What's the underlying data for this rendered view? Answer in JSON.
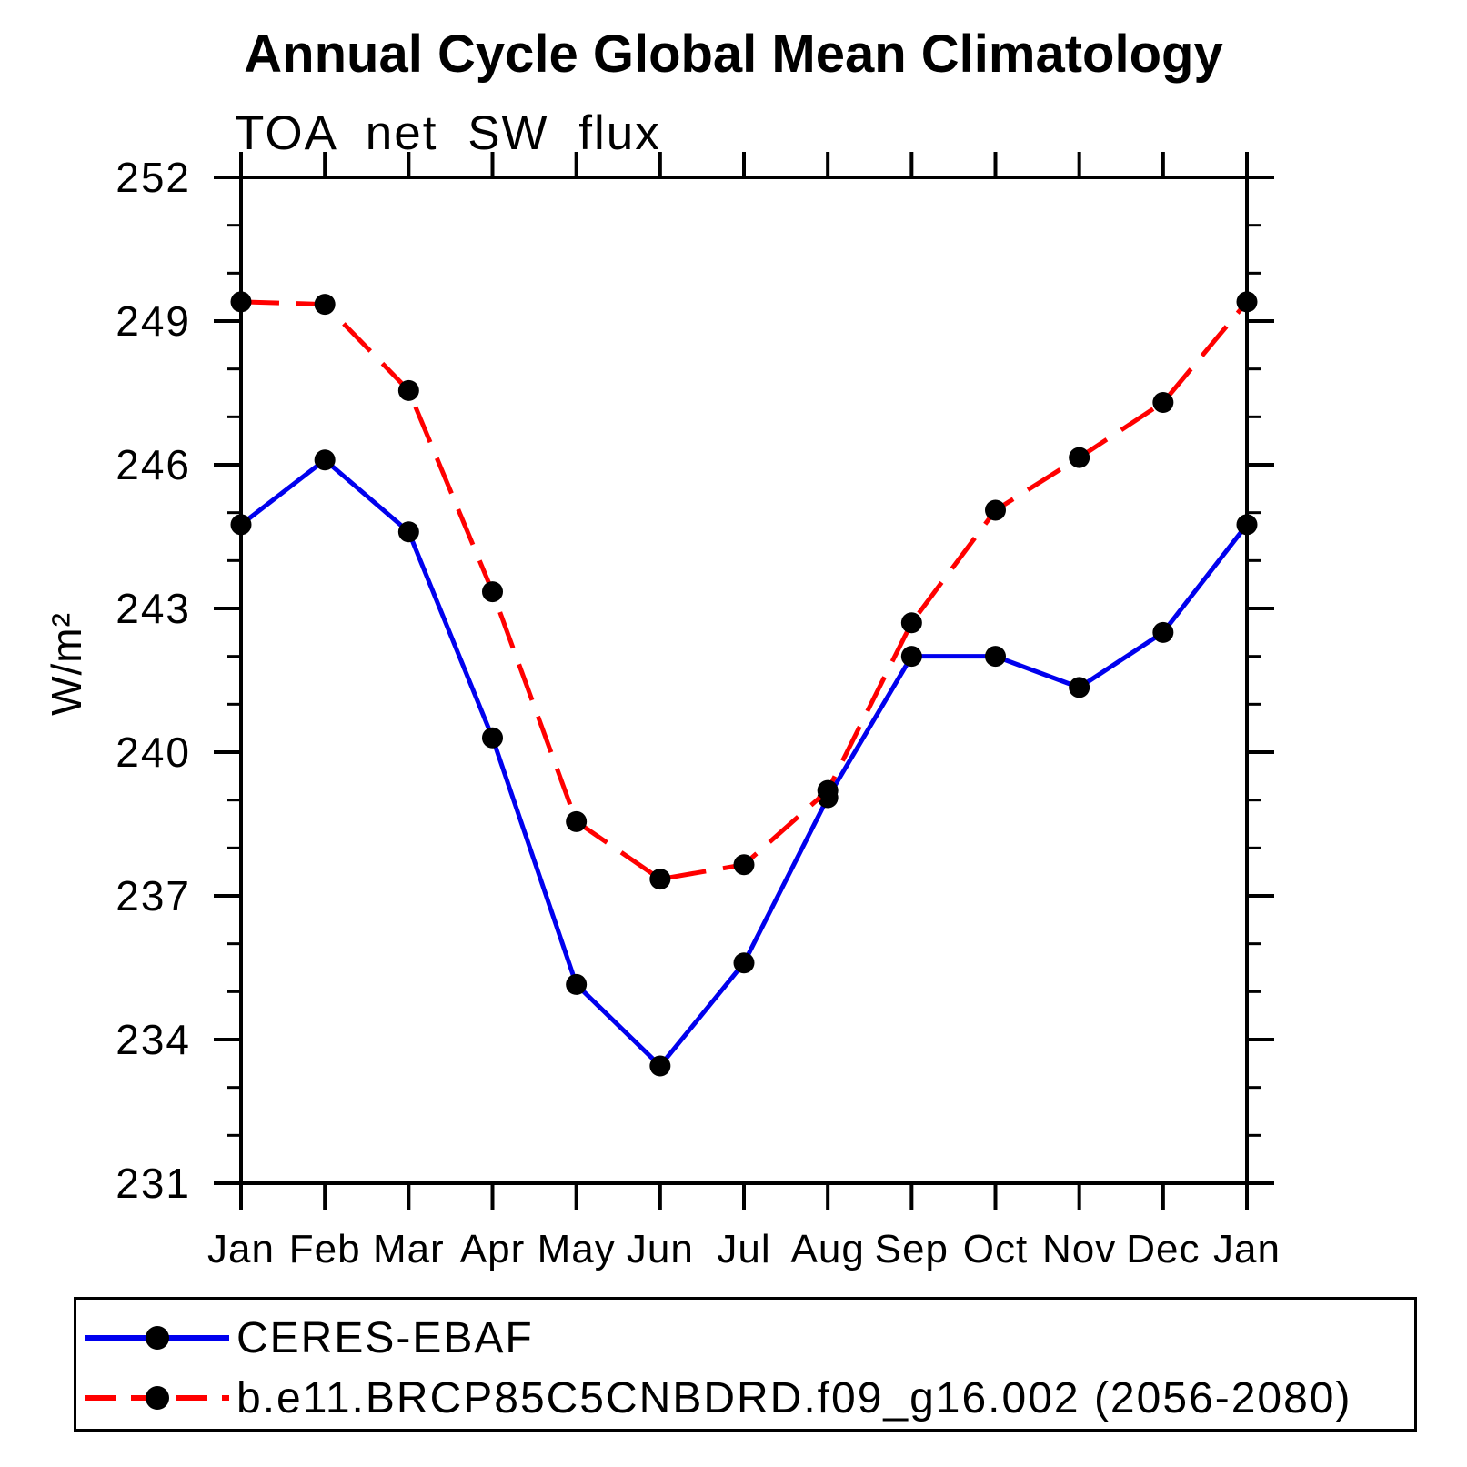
{
  "title": "Annual Cycle Global Mean Climatology",
  "subtitle": "TOA net SW flux",
  "ylabel": "W/m²",
  "colors": {
    "series_blue": "#0000ee",
    "series_red": "#ff0000",
    "marker": "#000000",
    "axis": "#000000",
    "background": "#ffffff"
  },
  "legend": {
    "entries": [
      {
        "label": "CERES-EBAF",
        "color": "#0000ee",
        "style": "solid"
      },
      {
        "label": "b.e11.BRCP85C5CNBDRD.f09_g16.002 (2056-2080)",
        "color": "#ff0000",
        "style": "dashed"
      }
    ]
  },
  "chart_data": {
    "type": "line",
    "title": "Annual Cycle Global Mean Climatology",
    "subtitle": "TOA net SW flux",
    "xlabel": "",
    "ylabel": "W/m²",
    "x_categories": [
      "Jan",
      "Feb",
      "Mar",
      "Apr",
      "May",
      "Jun",
      "Jul",
      "Aug",
      "Sep",
      "Oct",
      "Nov",
      "Dec",
      "Jan"
    ],
    "ylim": [
      231,
      252
    ],
    "y_major_ticks": [
      231,
      234,
      237,
      240,
      243,
      246,
      249,
      252
    ],
    "y_minor_step": 1,
    "grid": false,
    "legend_position": "bottom",
    "series": [
      {
        "name": "CERES-EBAF",
        "color": "#0000ee",
        "line_style": "solid",
        "marker": "circle",
        "values": [
          244.75,
          246.1,
          244.6,
          240.3,
          235.15,
          233.45,
          235.6,
          239.05,
          242.0,
          242.0,
          241.35,
          242.5,
          244.75
        ]
      },
      {
        "name": "b.e11.BRCP85C5CNBDRD.f09_g16.002 (2056-2080)",
        "color": "#ff0000",
        "line_style": "dashed",
        "marker": "circle",
        "values": [
          249.4,
          249.35,
          247.55,
          243.35,
          238.55,
          237.35,
          237.65,
          239.2,
          242.7,
          245.05,
          246.15,
          247.3,
          249.4
        ]
      }
    ]
  }
}
